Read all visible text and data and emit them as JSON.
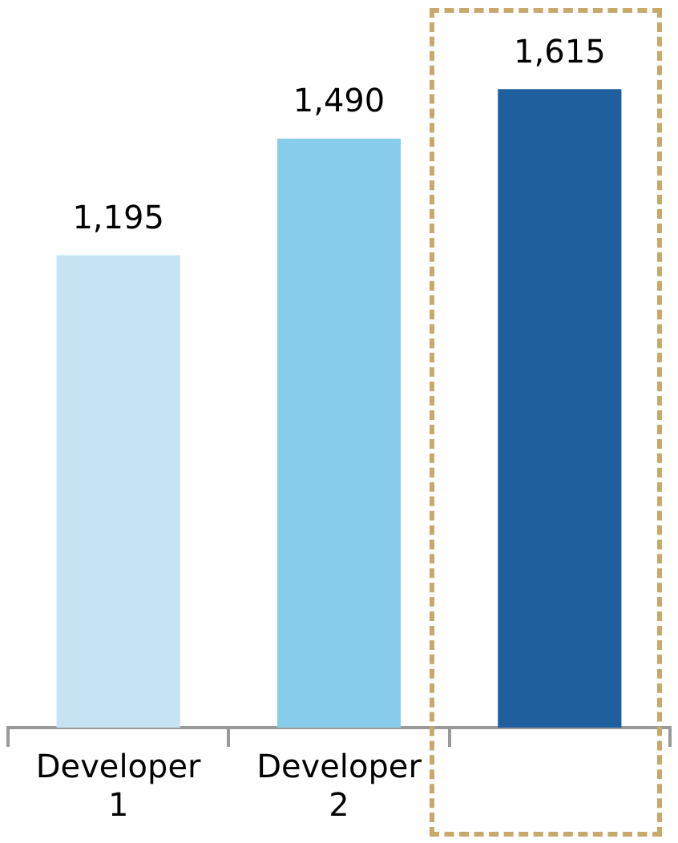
{
  "chart_data": {
    "type": "bar",
    "categories": [
      "Developer 1",
      "Developer 2",
      null
    ],
    "values": [
      1195,
      1490,
      1615
    ],
    "colors": [
      "#c5e3f3",
      "#87cdeb",
      "#1f5f9e"
    ],
    "value_labels": [
      "1,195",
      "1,490",
      "1,615"
    ],
    "grid": false,
    "legend": false,
    "tick_labels": "x"
  }
}
